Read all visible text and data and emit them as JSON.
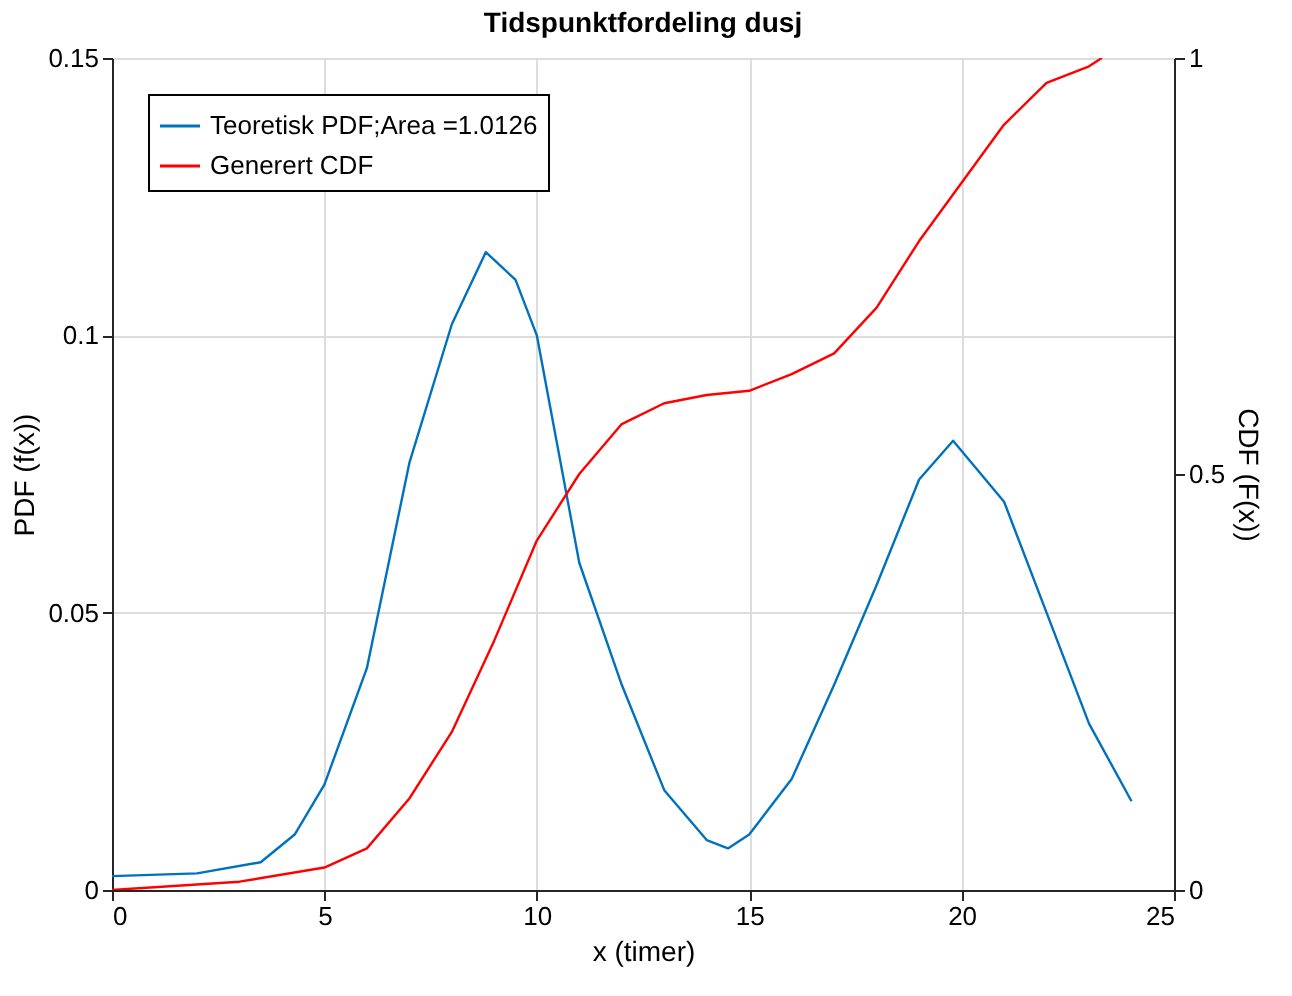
{
  "chart_data": {
    "type": "line",
    "title": "Tidspunktfordeling dusj",
    "xlabel": "x (timer)",
    "ylabel": "PDF (f(x))",
    "y2label": "CDF (F(x))",
    "xlim": [
      0,
      25
    ],
    "xticks": [
      0,
      5,
      10,
      15,
      20,
      25
    ],
    "ylim": [
      0,
      0.15
    ],
    "yticks": [
      0,
      0.05,
      0.1,
      0.15
    ],
    "y2lim": [
      0,
      1
    ],
    "y2ticks": [
      0,
      0.5,
      1
    ],
    "grid": true,
    "legend": "top left",
    "line_style": "solid",
    "marker": "none",
    "series": [
      {
        "name": "Teoretisk PDF;Area =1.0126",
        "color": "#0072bd",
        "x": [
          0,
          2,
          3.5,
          4.3,
          5,
          6,
          7,
          8,
          8.8,
          9.5,
          10,
          11,
          12,
          13,
          14,
          14.5,
          15,
          16,
          17,
          18,
          19,
          19.8,
          21,
          22,
          23,
          24
        ],
        "values": [
          0.0025,
          0.003,
          0.005,
          0.01,
          0.019,
          0.04,
          0.077,
          0.102,
          0.115,
          0.11,
          0.1,
          0.059,
          0.037,
          0.018,
          0.009,
          0.0075,
          0.01,
          0.02,
          0.037,
          0.055,
          0.074,
          0.081,
          0.07,
          0.05,
          0.03,
          0.016
        ]
      },
      {
        "name": "Generert CDF",
        "color": "#ff0000",
        "axis": "y2",
        "x": [
          0,
          3,
          5,
          6,
          7,
          8,
          9,
          10,
          11,
          12,
          13,
          14,
          15,
          16,
          17,
          18,
          19,
          20,
          21,
          22,
          23,
          23.3
        ],
        "values": [
          0,
          0.01,
          0.027,
          0.05,
          0.11,
          0.19,
          0.3,
          0.42,
          0.5,
          0.56,
          0.585,
          0.595,
          0.6,
          0.62,
          0.645,
          0.7,
          0.78,
          0.85,
          0.92,
          0.97,
          0.99,
          1.0
        ]
      }
    ]
  }
}
